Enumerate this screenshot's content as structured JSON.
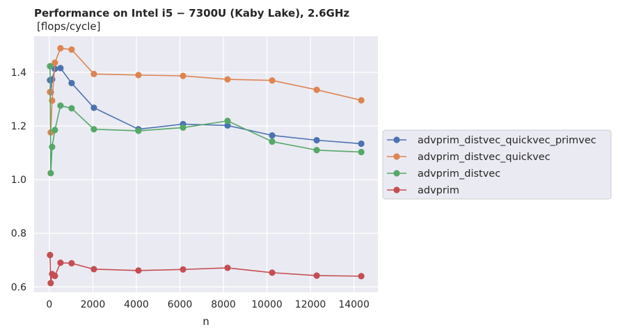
{
  "chart_data": {
    "type": "line",
    "title": "Performance on Intel i5 − 7300U (Kaby Lake),  2.6GHz",
    "subtitle": "[flops/cycle]",
    "xlabel": "n",
    "ylabel": "",
    "xlim": [
      -700,
      15100
    ],
    "ylim": [
      0.58,
      1.535
    ],
    "xticks": [
      0,
      2000,
      4000,
      6000,
      8000,
      10000,
      12000,
      14000
    ],
    "yticks": [
      0.6,
      0.8,
      1.0,
      1.2,
      1.4
    ],
    "xtick_labels": [
      "0",
      "2000",
      "4000",
      "6000",
      "8000",
      "10000",
      "12000",
      "14000"
    ],
    "ytick_labels": [
      "0.6",
      "0.8",
      "1.0",
      "1.2",
      "1.4"
    ],
    "grid": true,
    "legend_position": "right, outside",
    "series": [
      {
        "name": "advprim_distvec_quickvec_primvec",
        "color": "#4c72b0",
        "x": [
          32,
          64,
          128,
          256,
          512,
          1024,
          2048,
          4096,
          6144,
          8192,
          10240,
          12288,
          14336
        ],
        "y": [
          1.371,
          1.326,
          1.374,
          1.413,
          1.416,
          1.36,
          1.268,
          1.188,
          1.207,
          1.202,
          1.165,
          1.147,
          1.134
        ]
      },
      {
        "name": "advprim_distvec_quickvec",
        "color": "#dd8452",
        "x": [
          32,
          64,
          128,
          256,
          512,
          1024,
          2048,
          4096,
          6144,
          8192,
          10240,
          12288,
          14336
        ],
        "y": [
          1.327,
          1.176,
          1.295,
          1.436,
          1.49,
          1.485,
          1.394,
          1.39,
          1.387,
          1.374,
          1.37,
          1.335,
          1.296
        ]
      },
      {
        "name": "advprim_distvec",
        "color": "#55a868",
        "x": [
          32,
          64,
          128,
          256,
          512,
          1024,
          2048,
          4096,
          6144,
          8192,
          10240,
          12288,
          14336
        ],
        "y": [
          1.423,
          1.024,
          1.122,
          1.185,
          1.276,
          1.266,
          1.188,
          1.182,
          1.194,
          1.219,
          1.142,
          1.11,
          1.103
        ]
      },
      {
        "name": "advprim",
        "color": "#c44e52",
        "x": [
          32,
          64,
          128,
          256,
          512,
          1024,
          2048,
          4096,
          6144,
          8192,
          10240,
          12288,
          14336
        ],
        "y": [
          0.719,
          0.614,
          0.648,
          0.641,
          0.69,
          0.688,
          0.666,
          0.661,
          0.665,
          0.671,
          0.653,
          0.642,
          0.64
        ]
      }
    ]
  }
}
